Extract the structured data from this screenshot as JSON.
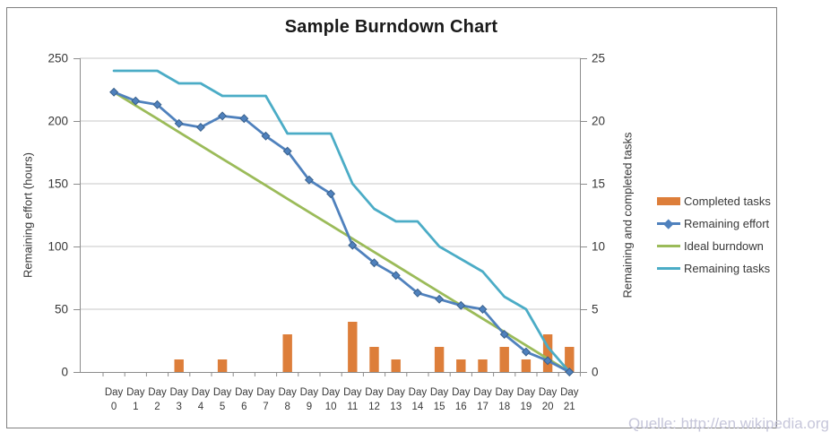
{
  "title": "Sample Burndown Chart",
  "watermark": "Quelle: http://en.wikipedia.org",
  "colors": {
    "bar_orange": "#DD7E3A",
    "line_blue": "#4F81BD",
    "marker_blue_edge": "#3A618C",
    "line_green": "#9BBB59",
    "line_teal": "#4BACC6",
    "grid_gray": "#C7C7C7",
    "axis_gray": "#8C8C8C",
    "frame_gray": "#808080",
    "text_dark": "#383838",
    "title_dark": "#1A1A1A",
    "watermark_lavender": "#C6C6DA"
  },
  "legend": {
    "position": "right",
    "items": [
      {
        "label": "Completed tasks",
        "swatch": "bar"
      },
      {
        "label": "Remaining effort",
        "swatch": "line-diamond"
      },
      {
        "label": "Ideal burndown",
        "swatch": "line"
      },
      {
        "label": "Remaining tasks",
        "swatch": "line"
      }
    ]
  },
  "chart_data": {
    "type": "combo",
    "categories": [
      "Day 0",
      "Day 1",
      "Day 2",
      "Day 3",
      "Day 4",
      "Day 5",
      "Day 6",
      "Day 7",
      "Day 8",
      "Day 9",
      "Day 10",
      "Day 11",
      "Day 12",
      "Day 13",
      "Day 14",
      "Day 15",
      "Day 16",
      "Day 17",
      "Day 18",
      "Day 19",
      "Day 20",
      "Day 21"
    ],
    "series": [
      {
        "name": "Completed tasks",
        "type": "bar",
        "axis": "right",
        "values": [
          0,
          0,
          0,
          1,
          0,
          1,
          0,
          0,
          3,
          0,
          0,
          4,
          2,
          1,
          0,
          2,
          1,
          1,
          2,
          1,
          3,
          2
        ]
      },
      {
        "name": "Remaining effort",
        "type": "line",
        "marker": "diamond",
        "axis": "left",
        "values": [
          223,
          216,
          213,
          198,
          195,
          204,
          202,
          188,
          176,
          153,
          142,
          101,
          87,
          77,
          63,
          58,
          53,
          50,
          30,
          16,
          9,
          0
        ]
      },
      {
        "name": "Ideal burndown",
        "type": "line",
        "axis": "left",
        "values": [
          223,
          212.4,
          201.8,
          191.1,
          180.5,
          169.9,
          159.3,
          148.7,
          138,
          127.4,
          116.8,
          106.2,
          95.6,
          85,
          74.3,
          63.7,
          53.1,
          42.5,
          31.9,
          21.2,
          10.6,
          0
        ]
      },
      {
        "name": "Remaining tasks",
        "type": "line",
        "axis": "right",
        "values": [
          24,
          24,
          24,
          23,
          23,
          22,
          22,
          22,
          19,
          19,
          19,
          15,
          13,
          12,
          12,
          10,
          9,
          8,
          6,
          5,
          2,
          0
        ]
      }
    ],
    "left_axis": {
      "title": "Remaining effort (hours)",
      "ticks": [
        0,
        50,
        100,
        150,
        200,
        250
      ],
      "range": [
        0,
        250
      ]
    },
    "right_axis": {
      "title": "Remaining and completed tasks",
      "ticks": [
        0,
        5,
        10,
        15,
        20,
        25
      ],
      "range": [
        0,
        25
      ]
    },
    "x_axis": {
      "word": "Day",
      "numbers": [
        "0",
        "1",
        "2",
        "3",
        "4",
        "5",
        "6",
        "7",
        "8",
        "9",
        "10",
        "11",
        "12",
        "13",
        "14",
        "15",
        "16",
        "17",
        "18",
        "19",
        "20",
        "21"
      ]
    },
    "grid": "horizontal-only",
    "legend_position": "right"
  }
}
